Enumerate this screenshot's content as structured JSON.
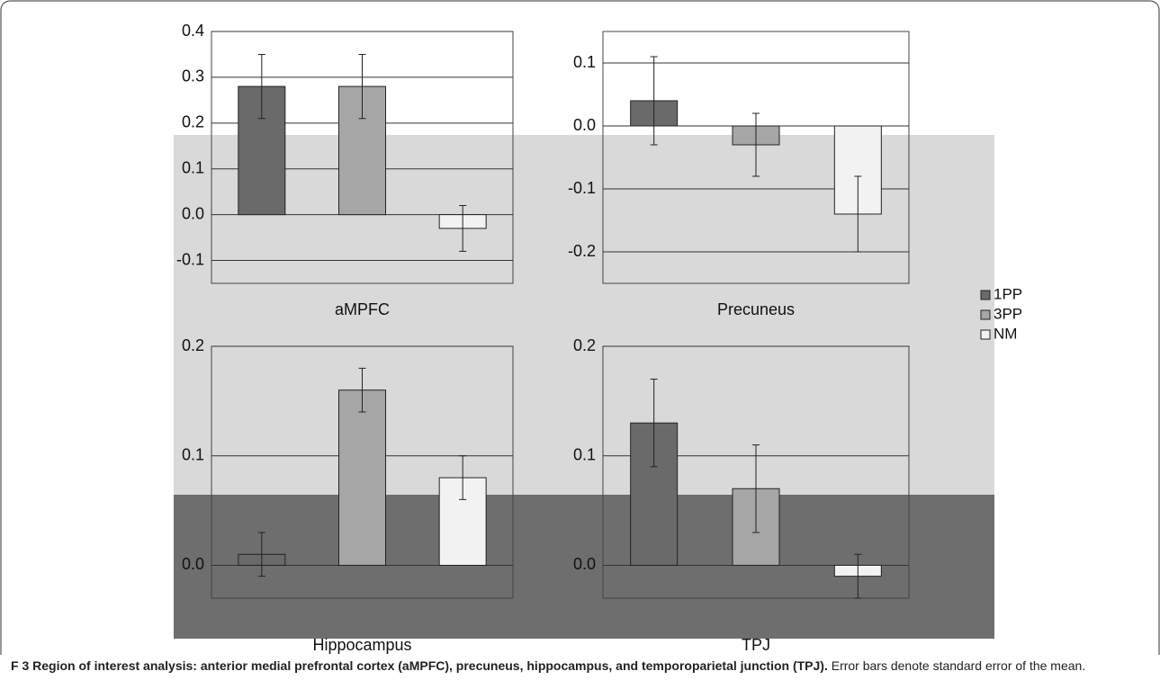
{
  "figure_label": "F",
  "caption": {
    "number": "3",
    "title": "Region of interest analysis: anterior medial prefrontal cortex (aMPFC), precuneus, hippocampus, and temporoparietal junction (TPJ).",
    "text": "Error bars denote standard error of the mean."
  },
  "legend": [
    {
      "name": "1PP",
      "color": "#6a6a6a"
    },
    {
      "name": "3PP",
      "color": "#a6a6a6"
    },
    {
      "name": "NM",
      "color": "#f2f2f2"
    }
  ],
  "chart_data": [
    {
      "type": "bar",
      "title": "aMPFC",
      "values": [
        0.28,
        0.28,
        -0.03
      ],
      "errors": [
        0.07,
        0.07,
        0.05
      ],
      "ylim": [
        -0.15,
        0.4
      ],
      "yticks": [
        -0.1,
        {
          "value": 0,
          "label": "0.0"
        },
        0.1,
        0.2,
        0.3,
        0.4
      ]
    },
    {
      "type": "bar",
      "title": "Precuneus",
      "values": [
        0.04,
        -0.03,
        -0.14
      ],
      "errors": [
        0.07,
        0.05,
        0.06
      ],
      "ylim": [
        -0.25,
        0.15
      ],
      "yticks": [
        -0.2,
        -0.1,
        {
          "value": 0,
          "label": "0.0"
        },
        0.1
      ]
    },
    {
      "type": "bar",
      "title": "Hippocampus",
      "values": [
        0.01,
        0.16,
        0.08
      ],
      "errors": [
        0.02,
        0.02,
        0.02
      ],
      "ylim": [
        -0.03,
        0.2
      ],
      "yticks": [
        {
          "value": 0,
          "label": "0.0"
        },
        0.1,
        0.2
      ]
    },
    {
      "type": "bar",
      "title": "TPJ",
      "values": [
        0.13,
        0.07,
        -0.01
      ],
      "errors": [
        0.04,
        0.04,
        0.02
      ],
      "ylim": [
        -0.03,
        0.2
      ],
      "yticks": [
        {
          "value": 0,
          "label": "0.0"
        },
        0.1,
        0.2
      ]
    }
  ]
}
